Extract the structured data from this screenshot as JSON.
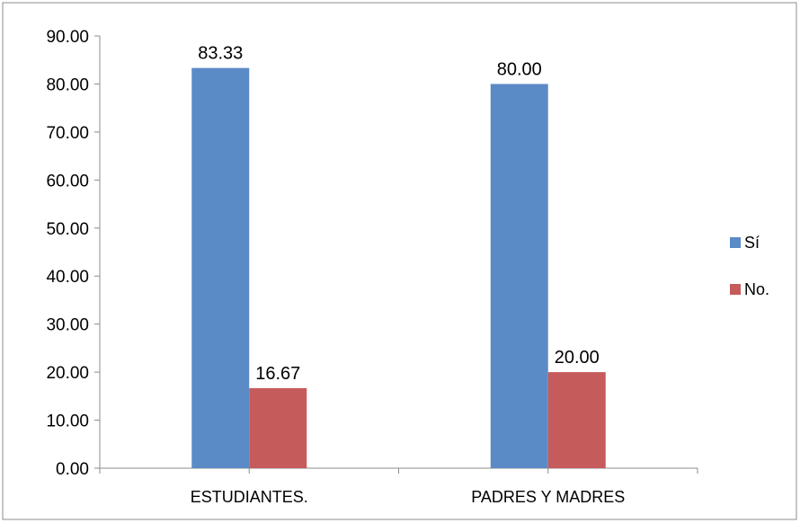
{
  "chart_data": {
    "type": "bar",
    "categories": [
      "ESTUDIANTES.",
      "PADRES Y MADRES"
    ],
    "series": [
      {
        "name": "Sí",
        "values": [
          83.33,
          80.0
        ],
        "color": "#5B8BC6"
      },
      {
        "name": "No.",
        "values": [
          16.67,
          20.0
        ],
        "color": "#C65B5B"
      }
    ],
    "data_labels": [
      [
        "83.33",
        "80.00"
      ],
      [
        "16.67",
        "20.00"
      ]
    ],
    "y_ticks": [
      "0.00",
      "10.00",
      "20.00",
      "30.00",
      "40.00",
      "50.00",
      "60.00",
      "70.00",
      "80.00",
      "90.00"
    ],
    "ylim": [
      0,
      90
    ],
    "title": "",
    "xlabel": "",
    "ylabel": "",
    "grid": false,
    "legend_position": "right"
  }
}
